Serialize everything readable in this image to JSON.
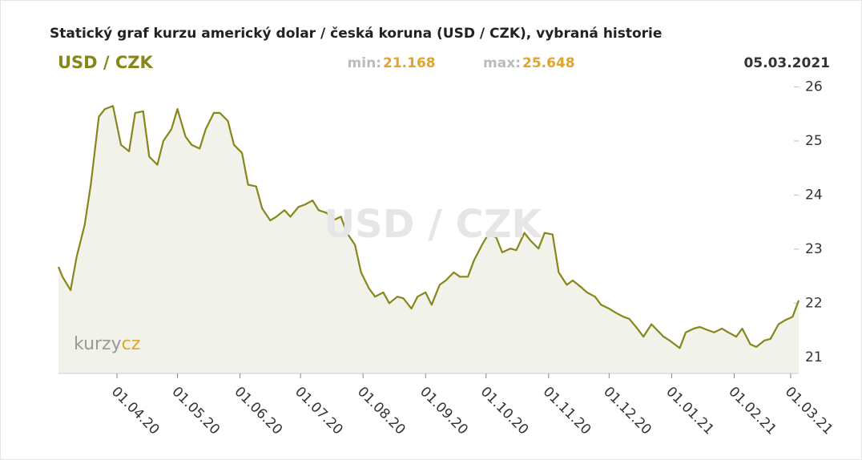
{
  "chart_data": {
    "type": "line",
    "title": "Statický graf kurzu americký dolar / česká koruna (USD / CZK), vybraná historie",
    "pair": "USD / CZK",
    "min_label": "min:",
    "min_value": 21.168,
    "max_label": "max:",
    "max_value": 25.648,
    "date": "05.03.2021",
    "watermark": "USD / CZK",
    "logo": [
      "kurzy",
      "cz"
    ],
    "color": "#86861a",
    "fill": "#f1f2ea",
    "x": [
      "03.03.20",
      "05.03.20",
      "09.03.20",
      "12.03.20",
      "16.03.20",
      "19.03.20",
      "23.03.20",
      "26.03.20",
      "30.03.20",
      "03.04.20",
      "07.04.20",
      "10.04.20",
      "14.04.20",
      "17.04.20",
      "21.04.20",
      "24.04.20",
      "28.04.20",
      "01.05.20",
      "05.05.20",
      "08.05.20",
      "12.05.20",
      "15.05.20",
      "19.05.20",
      "22.05.20",
      "26.05.20",
      "29.05.20",
      "02.06.20",
      "05.06.20",
      "09.06.20",
      "12.06.20",
      "16.06.20",
      "19.06.20",
      "23.06.20",
      "26.06.20",
      "30.06.20",
      "03.07.20",
      "07.07.20",
      "10.07.20",
      "14.07.20",
      "17.07.20",
      "21.07.20",
      "24.07.20",
      "28.07.20",
      "31.07.20",
      "04.08.20",
      "07.08.20",
      "11.08.20",
      "14.08.20",
      "18.08.20",
      "21.08.20",
      "25.08.20",
      "28.08.20",
      "01.09.20",
      "04.09.20",
      "08.09.20",
      "11.09.20",
      "15.09.20",
      "18.09.20",
      "22.09.20",
      "25.09.20",
      "29.09.20",
      "02.10.20",
      "06.10.20",
      "09.10.20",
      "13.10.20",
      "16.10.20",
      "20.10.20",
      "23.10.20",
      "27.10.20",
      "30.10.20",
      "03.11.20",
      "06.11.20",
      "10.11.20",
      "13.11.20",
      "17.11.20",
      "20.11.20",
      "24.11.20",
      "27.11.20",
      "01.12.20",
      "04.12.20",
      "08.12.20",
      "11.12.20",
      "15.12.20",
      "18.12.20",
      "22.12.20",
      "28.12.20",
      "31.12.20",
      "05.01.21",
      "08.01.21",
      "12.01.21",
      "15.01.21",
      "19.01.21",
      "22.01.21",
      "26.01.21",
      "29.01.21",
      "02.02.21",
      "05.02.21",
      "09.02.21",
      "12.02.21",
      "16.02.21",
      "19.02.21",
      "23.02.21",
      "26.02.21",
      "02.03.21",
      "05.03.21"
    ],
    "values": [
      22.67,
      22.49,
      22.24,
      22.86,
      23.45,
      24.19,
      25.45,
      25.59,
      25.648,
      24.93,
      24.81,
      25.52,
      25.55,
      24.71,
      24.56,
      25.0,
      25.22,
      25.59,
      25.08,
      24.93,
      24.86,
      25.22,
      25.52,
      25.52,
      25.37,
      24.93,
      24.78,
      24.19,
      24.16,
      23.75,
      23.53,
      23.6,
      23.72,
      23.6,
      23.78,
      23.82,
      23.9,
      23.72,
      23.67,
      23.53,
      23.6,
      23.3,
      23.08,
      22.57,
      22.27,
      22.12,
      22.2,
      22.0,
      22.12,
      22.09,
      21.9,
      22.12,
      22.2,
      21.97,
      22.34,
      22.42,
      22.57,
      22.49,
      22.49,
      22.79,
      23.08,
      23.27,
      23.22,
      22.94,
      23.01,
      22.98,
      23.3,
      23.16,
      23.01,
      23.3,
      23.27,
      22.57,
      22.34,
      22.42,
      22.3,
      22.2,
      22.12,
      21.97,
      21.9,
      21.83,
      21.75,
      21.71,
      21.53,
      21.38,
      21.61,
      21.38,
      21.31,
      21.168,
      21.46,
      21.53,
      21.56,
      21.5,
      21.46,
      21.53,
      21.46,
      21.38,
      21.53,
      21.24,
      21.19,
      21.31,
      21.34,
      21.61,
      21.68,
      21.75,
      22.05
    ],
    "xlim": [
      "03.03.20",
      "05.03.21"
    ],
    "xticks": [
      "01.04.20",
      "01.05.20",
      "01.06.20",
      "01.07.20",
      "01.08.20",
      "01.09.20",
      "01.10.20",
      "01.11.20",
      "01.12.20",
      "01.01.21",
      "01.02.21",
      "01.03.21"
    ],
    "ylim": [
      20.7,
      26.2
    ],
    "yticks": [
      21,
      22,
      23,
      24,
      25,
      26
    ]
  }
}
